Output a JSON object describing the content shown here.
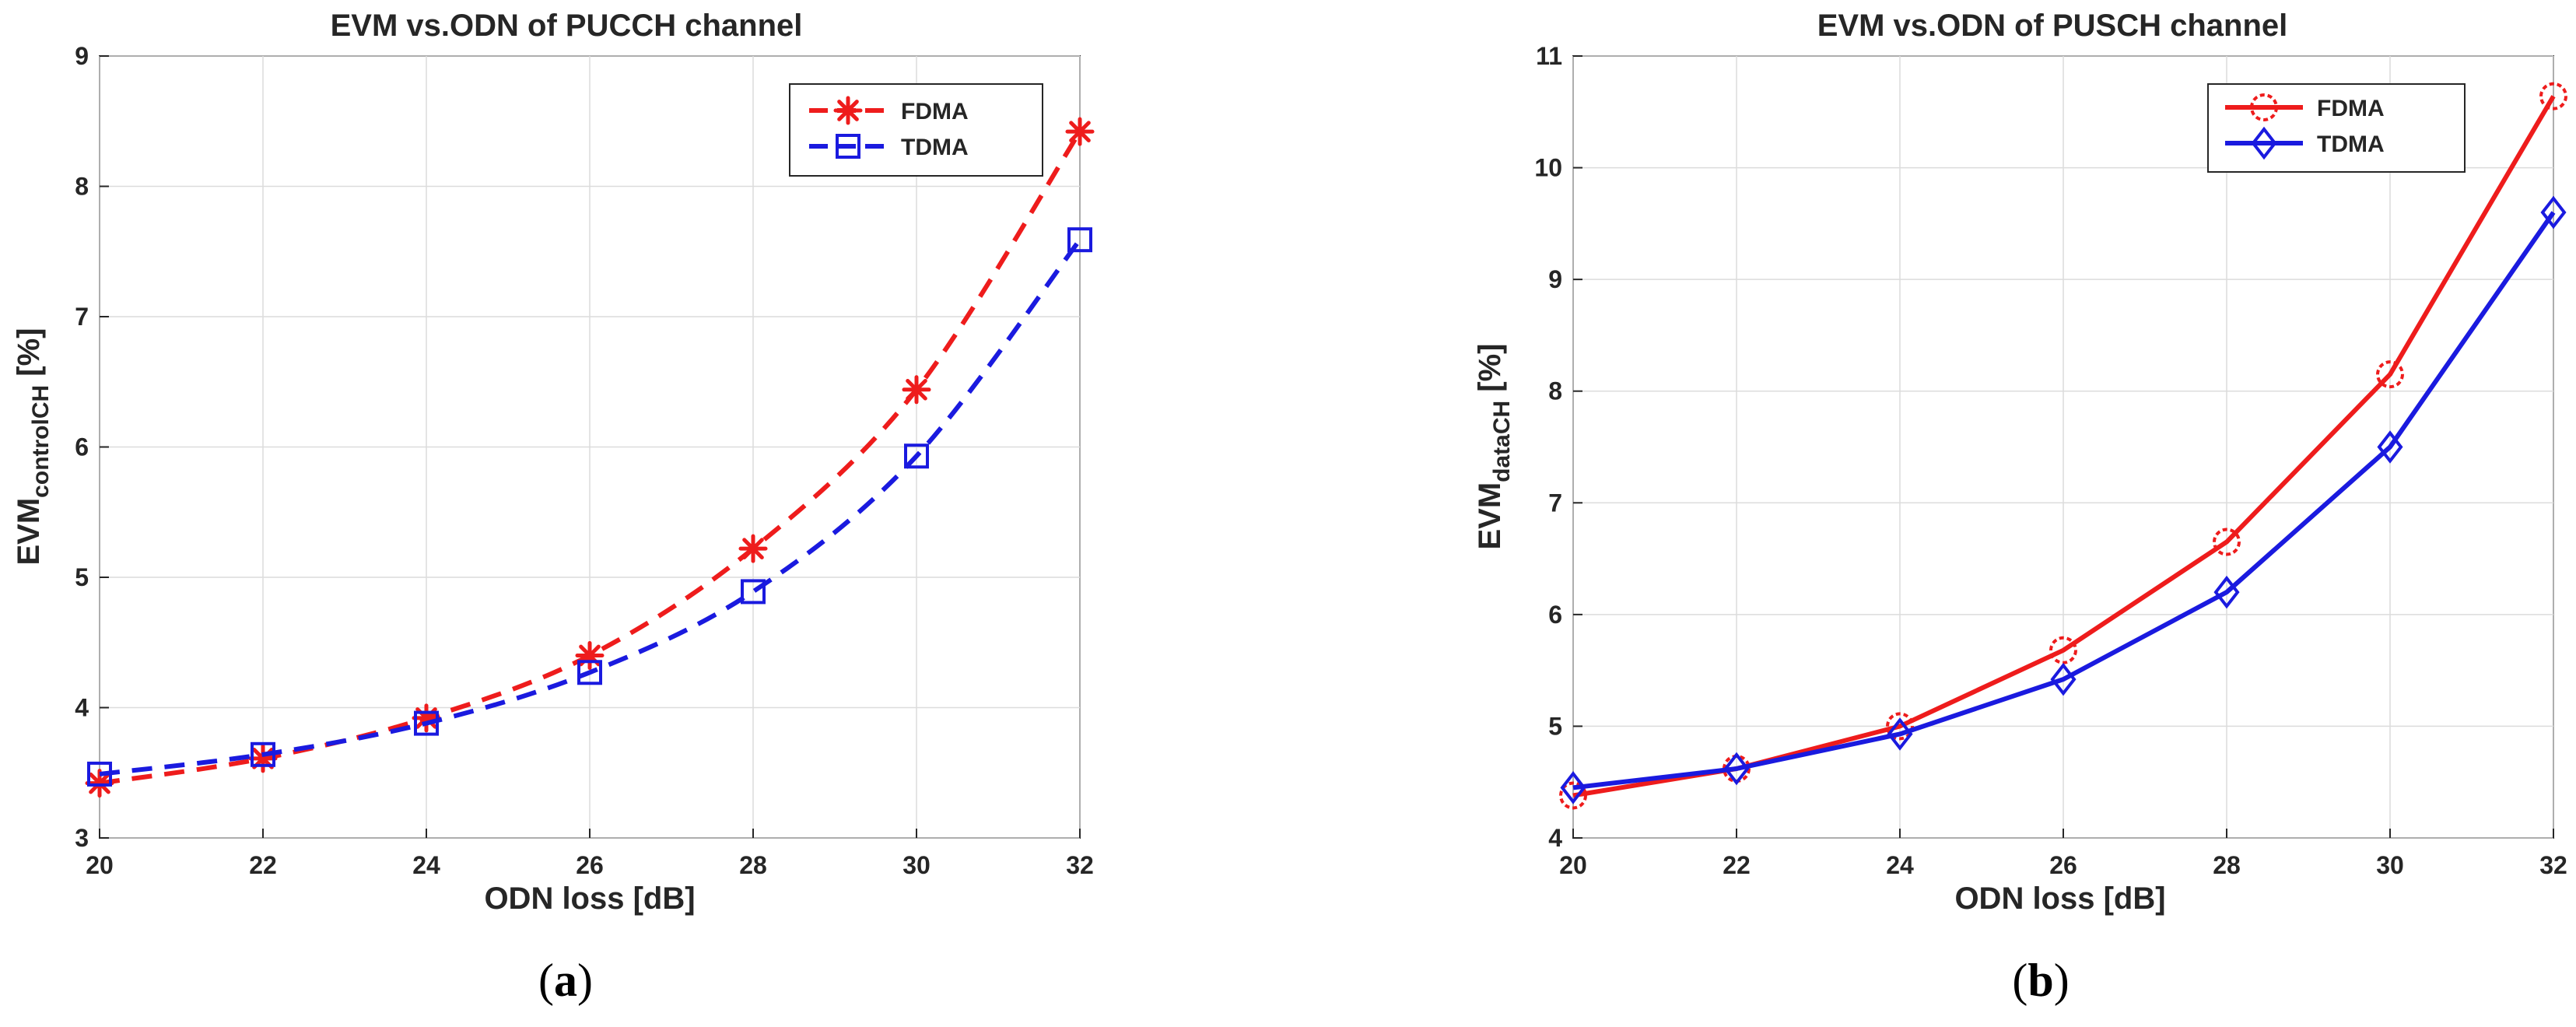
{
  "chart_data": [
    {
      "type": "line",
      "title": "EVM vs.ODN of PUCCH channel",
      "xlabel": "ODN loss [dB]",
      "ylabel_main": "EVM",
      "ylabel_sub": "controlCH",
      "ylabel_unit": " [%]",
      "xlim": [
        20,
        32
      ],
      "ylim": [
        3,
        9
      ],
      "xticks": [
        20,
        22,
        24,
        26,
        28,
        30,
        32
      ],
      "yticks": [
        3,
        4,
        5,
        6,
        7,
        8,
        9
      ],
      "grid": true,
      "legend_position": "top-right",
      "caption_open": "(",
      "caption_letter": "a",
      "caption_close": ")",
      "x": [
        20,
        22,
        24,
        26,
        28,
        30,
        32
      ],
      "series": [
        {
          "name": "FDMA",
          "color": "#ee1c1c",
          "line": "dashed",
          "marker": "asterisk",
          "values": [
            3.42,
            3.61,
            3.92,
            4.4,
            5.22,
            6.44,
            8.42
          ]
        },
        {
          "name": "TDMA",
          "color": "#1a1adf",
          "line": "dashed",
          "marker": "square",
          "values": [
            3.49,
            3.64,
            3.88,
            4.27,
            4.89,
            5.93,
            7.59
          ]
        }
      ]
    },
    {
      "type": "line",
      "title": "EVM vs.ODN of PUSCH channel",
      "xlabel": "ODN loss [dB]",
      "ylabel_main": "EVM",
      "ylabel_sub": "dataCH",
      "ylabel_unit": " [%]",
      "xlim": [
        20,
        32
      ],
      "ylim": [
        4,
        11
      ],
      "xticks": [
        20,
        22,
        24,
        26,
        28,
        30,
        32
      ],
      "yticks": [
        4,
        5,
        6,
        7,
        8,
        9,
        10,
        11
      ],
      "grid": true,
      "legend_position": "top-right",
      "caption_open": "(",
      "caption_letter": "b",
      "caption_close": ")",
      "x": [
        20,
        22,
        24,
        26,
        28,
        30,
        32
      ],
      "series": [
        {
          "name": "FDMA",
          "color": "#ee1c1c",
          "line": "solid",
          "marker": "circle-dashed",
          "values": [
            4.38,
            4.62,
            5.0,
            5.68,
            6.65,
            8.15,
            10.64
          ]
        },
        {
          "name": "TDMA",
          "color": "#1a1adf",
          "line": "solid",
          "marker": "diamond",
          "values": [
            4.45,
            4.62,
            4.93,
            5.42,
            6.2,
            7.5,
            9.6
          ]
        }
      ]
    }
  ]
}
